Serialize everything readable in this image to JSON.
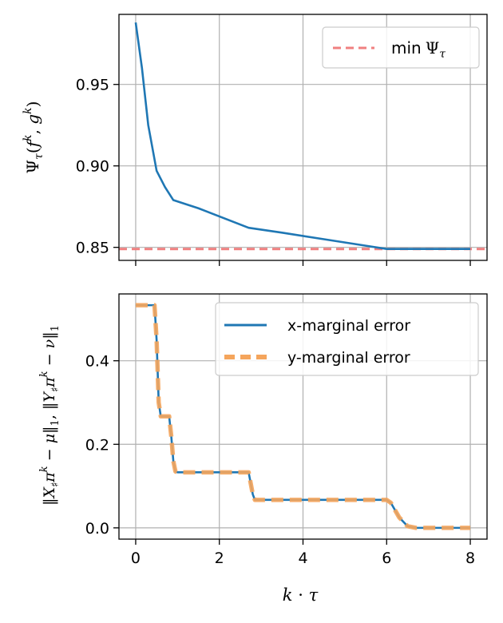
{
  "chart_data": [
    {
      "type": "line",
      "panel": "top",
      "ylabel": "Ψ_τ(f^k, g^k)",
      "xlim": [
        -0.4,
        8.4
      ],
      "ylim": [
        0.842,
        0.993
      ],
      "xticks": [
        0,
        2,
        4,
        6,
        8
      ],
      "yticks": [
        0.85,
        0.9,
        0.95
      ],
      "ytick_labels": [
        "0.85",
        "0.90",
        "0.95"
      ],
      "grid": true,
      "legend": "top-right",
      "series": [
        {
          "label": "",
          "color": "#1f77b4",
          "x": [
            0.0,
            0.15,
            0.3,
            0.5,
            0.7,
            0.9,
            1.5,
            2.0,
            2.7,
            3.5,
            4.5,
            5.5,
            6.0,
            7.0,
            8.0
          ],
          "y": [
            0.988,
            0.96,
            0.925,
            0.897,
            0.887,
            0.879,
            0.874,
            0.869,
            0.862,
            0.859,
            0.855,
            0.851,
            0.849,
            0.849,
            0.849
          ]
        }
      ],
      "hlines": [
        {
          "name": "min Ψ_τ",
          "y": 0.849,
          "color": "#f08080",
          "style": "dashed"
        }
      ]
    },
    {
      "type": "line",
      "panel": "bottom",
      "xlabel": "k · τ",
      "ylabel": "‖X♯π^k − μ‖₁,  ‖Y♯π^k − ν‖₁",
      "xlim": [
        -0.4,
        8.4
      ],
      "ylim": [
        -0.027,
        0.56
      ],
      "xticks": [
        0,
        2,
        4,
        6,
        8
      ],
      "xtick_labels": [
        "0",
        "2",
        "4",
        "6",
        "8"
      ],
      "yticks": [
        0.0,
        0.2,
        0.4
      ],
      "ytick_labels": [
        "0.0",
        "0.2",
        "0.4"
      ],
      "grid": true,
      "legend": "top-right",
      "series": [
        {
          "name": "x-marginal error",
          "color": "#1f77b4",
          "style": "solid",
          "x": [
            0.0,
            0.45,
            0.5,
            0.55,
            0.6,
            0.8,
            0.85,
            0.9,
            0.95,
            1.0,
            2.7,
            2.8,
            2.85,
            6.0,
            6.1,
            6.3,
            6.5,
            6.7,
            8.0
          ],
          "y": [
            0.533,
            0.533,
            0.45,
            0.3,
            0.267,
            0.267,
            0.22,
            0.16,
            0.135,
            0.133,
            0.133,
            0.08,
            0.067,
            0.067,
            0.06,
            0.025,
            0.004,
            0.0,
            0.0
          ]
        },
        {
          "name": "y-marginal error",
          "color": "#f5a55c",
          "style": "dashed",
          "x": [
            0.0,
            0.45,
            0.5,
            0.55,
            0.6,
            0.8,
            0.85,
            0.9,
            0.95,
            1.0,
            2.7,
            2.8,
            2.85,
            6.0,
            6.1,
            6.3,
            6.5,
            6.7,
            8.0
          ],
          "y": [
            0.533,
            0.533,
            0.45,
            0.3,
            0.267,
            0.267,
            0.22,
            0.16,
            0.135,
            0.133,
            0.133,
            0.08,
            0.067,
            0.067,
            0.06,
            0.025,
            0.004,
            0.0,
            0.0
          ]
        }
      ]
    }
  ]
}
